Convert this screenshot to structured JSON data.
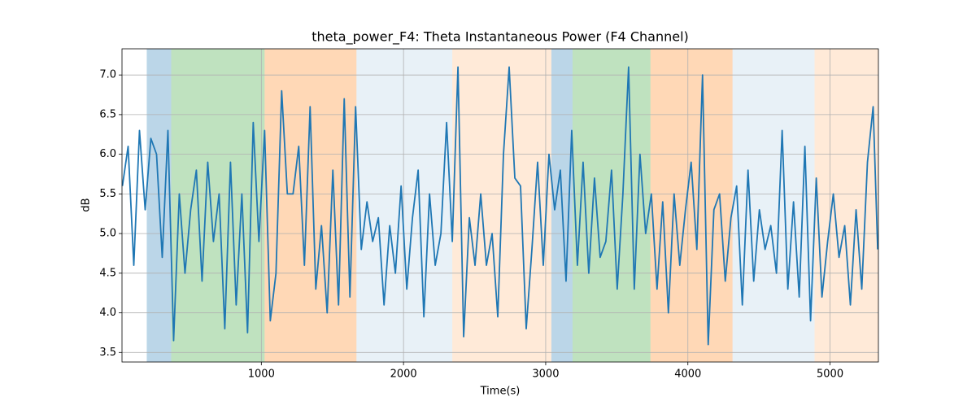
{
  "chart_data": {
    "type": "line",
    "title": "theta_power_F4: Theta Instantaneous Power (F4 Channel)",
    "xlabel": "Time(s)",
    "ylabel": "dB",
    "xlim": [
      20,
      5340
    ],
    "ylim": [
      3.38,
      7.33
    ],
    "xticks": [
      1000,
      2000,
      3000,
      4000,
      5000
    ],
    "yticks": [
      3.5,
      {
        "value": 4.0,
        "label": "4.0"
      },
      4.5,
      {
        "value": 5.0,
        "label": "5.0"
      },
      5.5,
      {
        "value": 6.0,
        "label": "6.0"
      },
      6.5,
      {
        "value": 7.0,
        "label": "7.0"
      }
    ],
    "grid": true,
    "spans": [
      {
        "start": 194,
        "end": 366,
        "color": "#1f77b4",
        "alpha": 0.3
      },
      {
        "start": 366,
        "end": 1023,
        "color": "#2ca02c",
        "alpha": 0.3
      },
      {
        "start": 1023,
        "end": 1669,
        "color": "#ff7f0e",
        "alpha": 0.3
      },
      {
        "start": 1669,
        "end": 2343,
        "color": "#1f77b4",
        "alpha": 0.1
      },
      {
        "start": 2343,
        "end": 3040,
        "color": "#ff7f0e",
        "alpha": 0.16
      },
      {
        "start": 3040,
        "end": 3189,
        "color": "#1f77b4",
        "alpha": 0.3
      },
      {
        "start": 3189,
        "end": 3737,
        "color": "#2ca02c",
        "alpha": 0.3
      },
      {
        "start": 3737,
        "end": 4314,
        "color": "#ff7f0e",
        "alpha": 0.3
      },
      {
        "start": 4314,
        "end": 4891,
        "color": "#1f77b4",
        "alpha": 0.1
      },
      {
        "start": 4891,
        "end": 5340,
        "color": "#ff7f0e",
        "alpha": 0.16
      }
    ],
    "x": [
      23,
      63,
      103,
      143,
      183,
      223,
      263,
      303,
      343,
      383,
      423,
      463,
      503,
      543,
      583,
      623,
      663,
      703,
      743,
      783,
      823,
      863,
      903,
      943,
      983,
      1023,
      1063,
      1103,
      1143,
      1183,
      1223,
      1263,
      1303,
      1343,
      1383,
      1423,
      1463,
      1503,
      1543,
      1583,
      1623,
      1663,
      1703,
      1743,
      1783,
      1823,
      1863,
      1903,
      1943,
      1983,
      2023,
      2063,
      2103,
      2143,
      2183,
      2223,
      2263,
      2303,
      2343,
      2383,
      2423,
      2463,
      2503,
      2543,
      2583,
      2623,
      2663,
      2703,
      2743,
      2783,
      2823,
      2863,
      2903,
      2943,
      2983,
      3023,
      3063,
      3103,
      3143,
      3183,
      3223,
      3263,
      3303,
      3343,
      3383,
      3423,
      3463,
      3503,
      3543,
      3583,
      3623,
      3663,
      3703,
      3743,
      3783,
      3823,
      3863,
      3903,
      3943,
      3983,
      4023,
      4063,
      4103,
      4143,
      4183,
      4223,
      4263,
      4303,
      4343,
      4383,
      4423,
      4463,
      4503,
      4543,
      4583,
      4623,
      4663,
      4703,
      4743,
      4783,
      4823,
      4863,
      4903,
      4943,
      4983,
      5023,
      5063,
      5103,
      5143,
      5183,
      5223,
      5263,
      5303,
      5335
    ],
    "series": [
      {
        "color": "#1f77b4",
        "values": [
          5.6,
          6.1,
          4.6,
          6.3,
          5.3,
          6.2,
          6.0,
          4.7,
          6.3,
          3.65,
          5.5,
          4.5,
          5.3,
          5.8,
          4.4,
          5.9,
          4.9,
          5.5,
          3.8,
          5.9,
          4.1,
          5.5,
          3.75,
          6.4,
          4.9,
          6.3,
          3.9,
          4.5,
          6.8,
          5.5,
          5.5,
          6.1,
          4.6,
          6.6,
          4.3,
          5.1,
          4.0,
          5.8,
          4.1,
          6.7,
          4.2,
          6.6,
          4.8,
          5.4,
          4.9,
          5.2,
          4.1,
          5.1,
          4.5,
          5.6,
          4.3,
          5.2,
          5.8,
          3.95,
          5.5,
          4.6,
          5.0,
          6.4,
          4.9,
          7.1,
          3.7,
          5.2,
          4.6,
          5.5,
          4.6,
          5.0,
          3.95,
          6.0,
          7.1,
          5.7,
          5.6,
          3.8,
          4.8,
          5.9,
          4.6,
          6.0,
          5.3,
          5.8,
          4.4,
          6.3,
          4.6,
          5.9,
          4.5,
          5.7,
          4.7,
          4.9,
          5.8,
          4.3,
          5.5,
          7.1,
          4.3,
          6.0,
          5.0,
          5.5,
          4.3,
          5.4,
          4.0,
          5.5,
          4.6,
          5.3,
          5.9,
          4.8,
          7.0,
          3.6,
          5.3,
          5.5,
          4.4,
          5.2,
          5.6,
          4.1,
          5.8,
          4.4,
          5.3,
          4.8,
          5.1,
          4.5,
          6.3,
          4.3,
          5.4,
          4.2,
          6.1,
          3.9,
          5.7,
          4.2,
          4.9,
          5.5,
          4.7,
          5.1,
          4.1,
          5.3,
          4.3,
          5.9,
          6.6,
          4.8
        ]
      }
    ]
  }
}
